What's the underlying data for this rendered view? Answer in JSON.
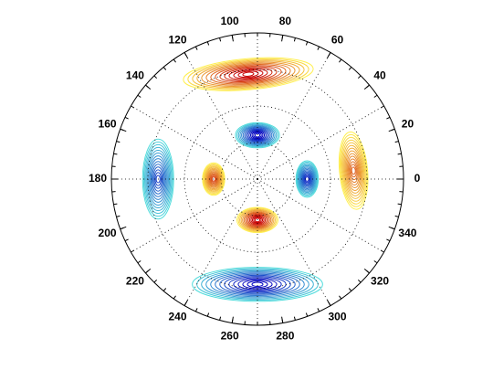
{
  "chart_data": {
    "type": "polar-contour",
    "thetaticks": [
      0,
      20,
      40,
      60,
      80,
      100,
      120,
      140,
      160,
      180,
      200,
      220,
      240,
      260,
      280,
      300,
      320,
      340
    ],
    "rlim": [
      0,
      1
    ],
    "rgrid": [
      0.25,
      0.5,
      0.75
    ],
    "spoke_step": 30,
    "minor_step": 5,
    "lobes": [
      {
        "theta": 95,
        "r": 0.72,
        "level": 1,
        "span": 70,
        "width": 0.2
      },
      {
        "theta": 270,
        "r": 0.72,
        "level": -1,
        "span": 70,
        "width": 0.22
      },
      {
        "theta": 180,
        "r": 0.68,
        "level": -0.6,
        "span": 45,
        "width": 0.2
      },
      {
        "theta": 5,
        "r": 0.66,
        "level": 0.5,
        "span": 45,
        "width": 0.18
      },
      {
        "theta": 90,
        "r": 0.3,
        "level": -1,
        "span": 55,
        "width": 0.16
      },
      {
        "theta": 270,
        "r": 0.28,
        "level": 1,
        "span": 55,
        "width": 0.16
      },
      {
        "theta": 0,
        "r": 0.34,
        "level": -0.7,
        "span": 40,
        "width": 0.14
      },
      {
        "theta": 180,
        "r": 0.3,
        "level": 0.6,
        "span": 40,
        "width": 0.14
      }
    ]
  }
}
